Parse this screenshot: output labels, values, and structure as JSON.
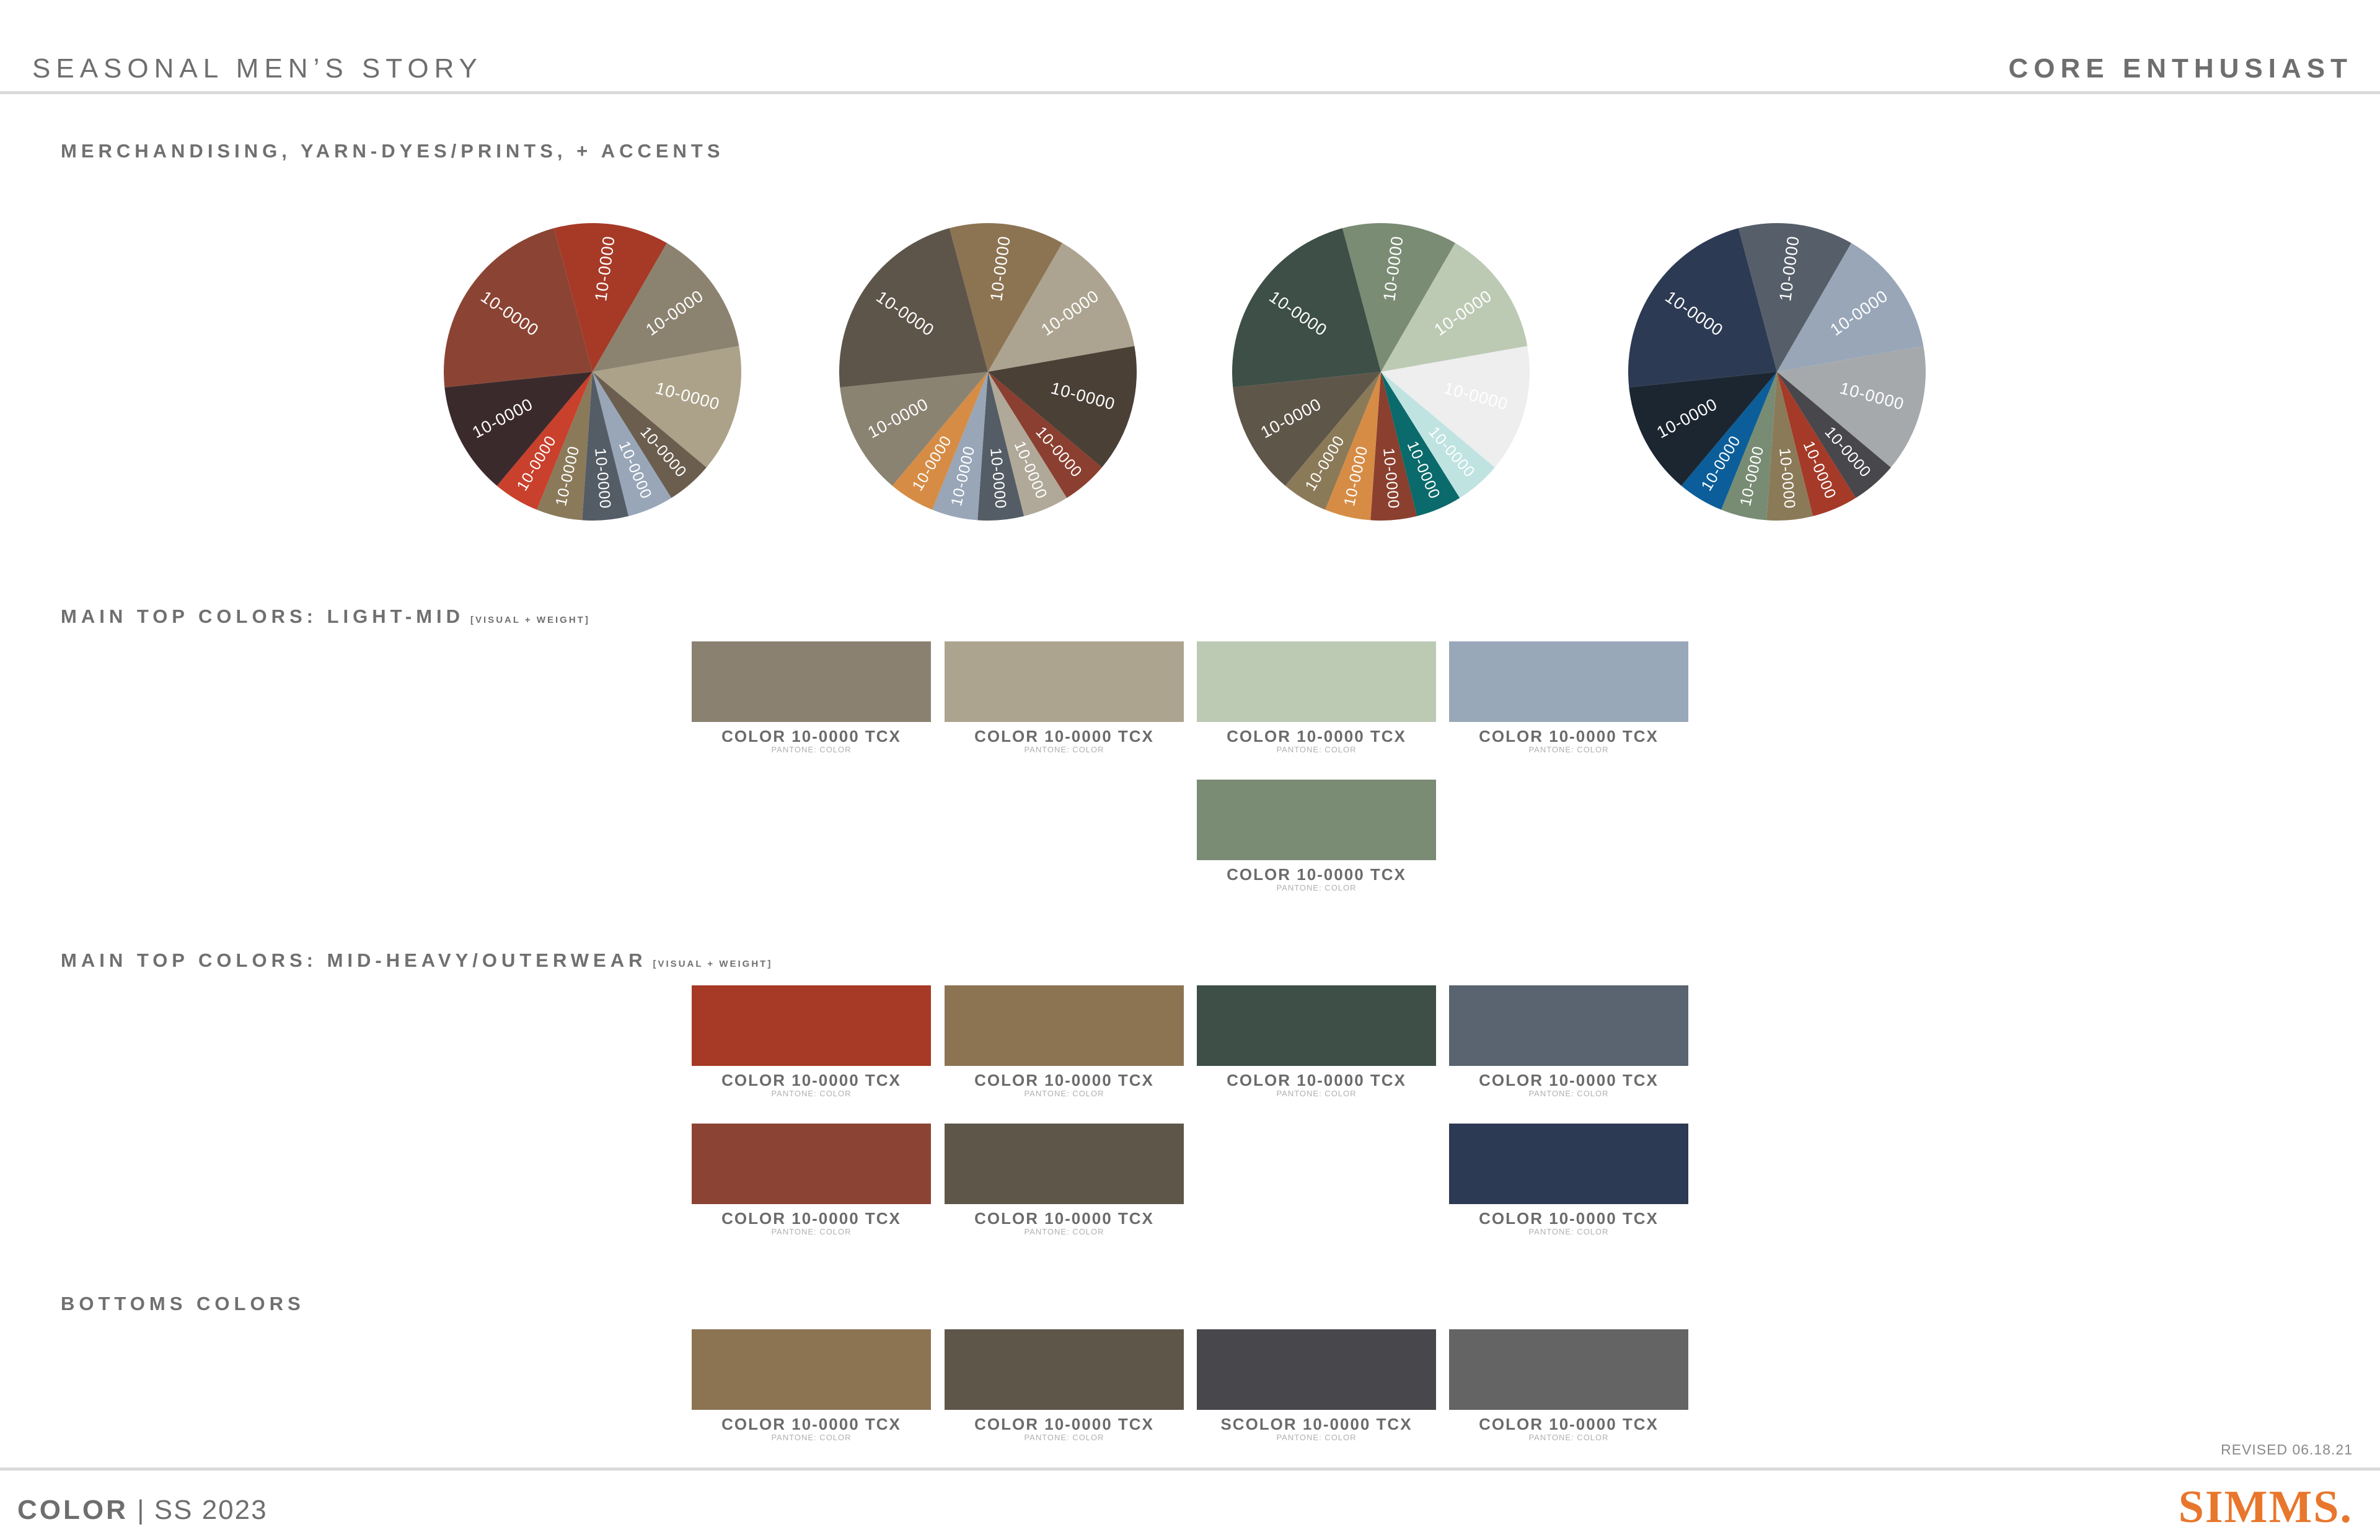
{
  "header": {
    "left_title": "SEASONAL MEN’S STORY",
    "right_title": "CORE ENTHUSIAST"
  },
  "sections": {
    "merch": {
      "title": "MERCHANDISING, YARN-DYES/PRINTS, + ACCENTS"
    },
    "light": {
      "title": "MAIN TOP COLORS: LIGHT-MID",
      "note": "[VISUAL + WEIGHT]"
    },
    "heavy": {
      "title": "MAIN TOP COLORS: MID-HEAVY/OUTERWEAR",
      "note": "[VISUAL + WEIGHT]"
    },
    "bottoms": {
      "title": "BOTTOMS COLORS"
    }
  },
  "wheels": [
    {
      "colors": [
        "#a63a27",
        "#8b8370",
        "#aca289",
        "#6b5e4f",
        "#98a6b8",
        "#545c65",
        "#8a7a5a",
        "#c9402c",
        "#3b2a2c",
        "#8b4434"
      ],
      "labels": [
        "10-0000",
        "10-0000",
        "10-0000",
        "10-0000",
        "10-0000",
        "10-0000",
        "10-0000",
        "10-0000",
        "10-0000",
        "10-0000"
      ]
    },
    {
      "colors": [
        "#8c7453",
        "#aca490",
        "#4b4036",
        "#8b3f30",
        "#b0a898",
        "#545c65",
        "#98a6b8",
        "#d68c45",
        "#8b8372",
        "#5e554a"
      ],
      "labels": [
        "10-0000",
        "10-0000",
        "10-0000",
        "10-0000",
        "10-0000",
        "10-0000",
        "10-0000",
        "10-0000",
        "10-0000",
        "10-0000"
      ]
    },
    {
      "colors": [
        "#7a8c74",
        "#bccab4",
        "#eeeeee",
        "#bfe3e1",
        "#0b6a6b",
        "#8b3f2e",
        "#d68c45",
        "#8b7a58",
        "#5f564a",
        "#3d4f47"
      ],
      "labels": [
        "10-0000",
        "10-0000",
        "10-0000",
        "10-0000",
        "10-0000",
        "10-0000",
        "10-0000",
        "10-0000",
        "10-0000",
        "10-0000"
      ]
    },
    {
      "colors": [
        "#565f69",
        "#98a6b8",
        "#a6a9ac",
        "#47474c",
        "#a53a28",
        "#8b7a58",
        "#788c74",
        "#0b5e9a",
        "#1c2631",
        "#2d3a53"
      ],
      "labels": [
        "10-0000",
        "10-0000",
        "10-0000",
        "10-0000",
        "10-0000",
        "10-0000",
        "10-0000",
        "10-0000",
        "10-0000",
        "10-0000"
      ]
    }
  ],
  "swatches": [
    {
      "group": "light",
      "color": "#8a8170",
      "label": "COLOR 10-0000 TCX",
      "sub": "PANTONE: COLOR"
    },
    {
      "group": "light",
      "color": "#aca48f",
      "label": "COLOR 10-0000 TCX",
      "sub": "PANTONE: COLOR"
    },
    {
      "group": "light",
      "color": "#bccab4",
      "label": "COLOR 10-0000 TCX",
      "sub": "PANTONE: COLOR"
    },
    {
      "group": "light",
      "color": "#99a8b9",
      "label": "COLOR 10-0000 TCX",
      "sub": "PANTONE: COLOR"
    },
    {
      "group": "light",
      "color": "#7a8c74",
      "label": "COLOR 10-0000 TCX",
      "sub": "PANTONE: COLOR"
    },
    {
      "group": "heavy",
      "color": "#a63a27",
      "label": "COLOR 10-0000 TCX",
      "sub": "PANTONE: COLOR"
    },
    {
      "group": "heavy",
      "color": "#8c7453",
      "label": "COLOR 10-0000 TCX",
      "sub": "PANTONE: COLOR"
    },
    {
      "group": "heavy",
      "color": "#3d4f47",
      "label": "COLOR 10-0000 TCX",
      "sub": "PANTONE: COLOR"
    },
    {
      "group": "heavy",
      "color": "#5a6470",
      "label": "COLOR 10-0000 TCX",
      "sub": "PANTONE: COLOR"
    },
    {
      "group": "heavy",
      "color": "#8b4434",
      "label": "COLOR 10-0000 TCX",
      "sub": "PANTONE: COLOR"
    },
    {
      "group": "heavy",
      "color": "#5f564a",
      "label": "COLOR 10-0000 TCX",
      "sub": "PANTONE: COLOR"
    },
    {
      "group": "heavy",
      "color": "#2d3a53",
      "label": "COLOR 10-0000 TCX",
      "sub": "PANTONE: COLOR"
    },
    {
      "group": "bottoms",
      "color": "#8c7453",
      "label": "COLOR 10-0000 TCX",
      "sub": "PANTONE: COLOR"
    },
    {
      "group": "bottoms",
      "color": "#5f564a",
      "label": "COLOR 10-0000 TCX",
      "sub": "PANTONE: COLOR"
    },
    {
      "group": "bottoms",
      "color": "#47474c",
      "label": "SCOLOR 10-0000 TCX",
      "sub": "PANTONE: COLOR"
    },
    {
      "group": "bottoms",
      "color": "#646464",
      "label": "COLOR 10-0000 TCX",
      "sub": "PANTONE: COLOR"
    }
  ],
  "revised": "REVISED 06.18.21",
  "footer": {
    "label": "COLOR",
    "season": "| SS 2023",
    "logo": "SIMMS."
  }
}
